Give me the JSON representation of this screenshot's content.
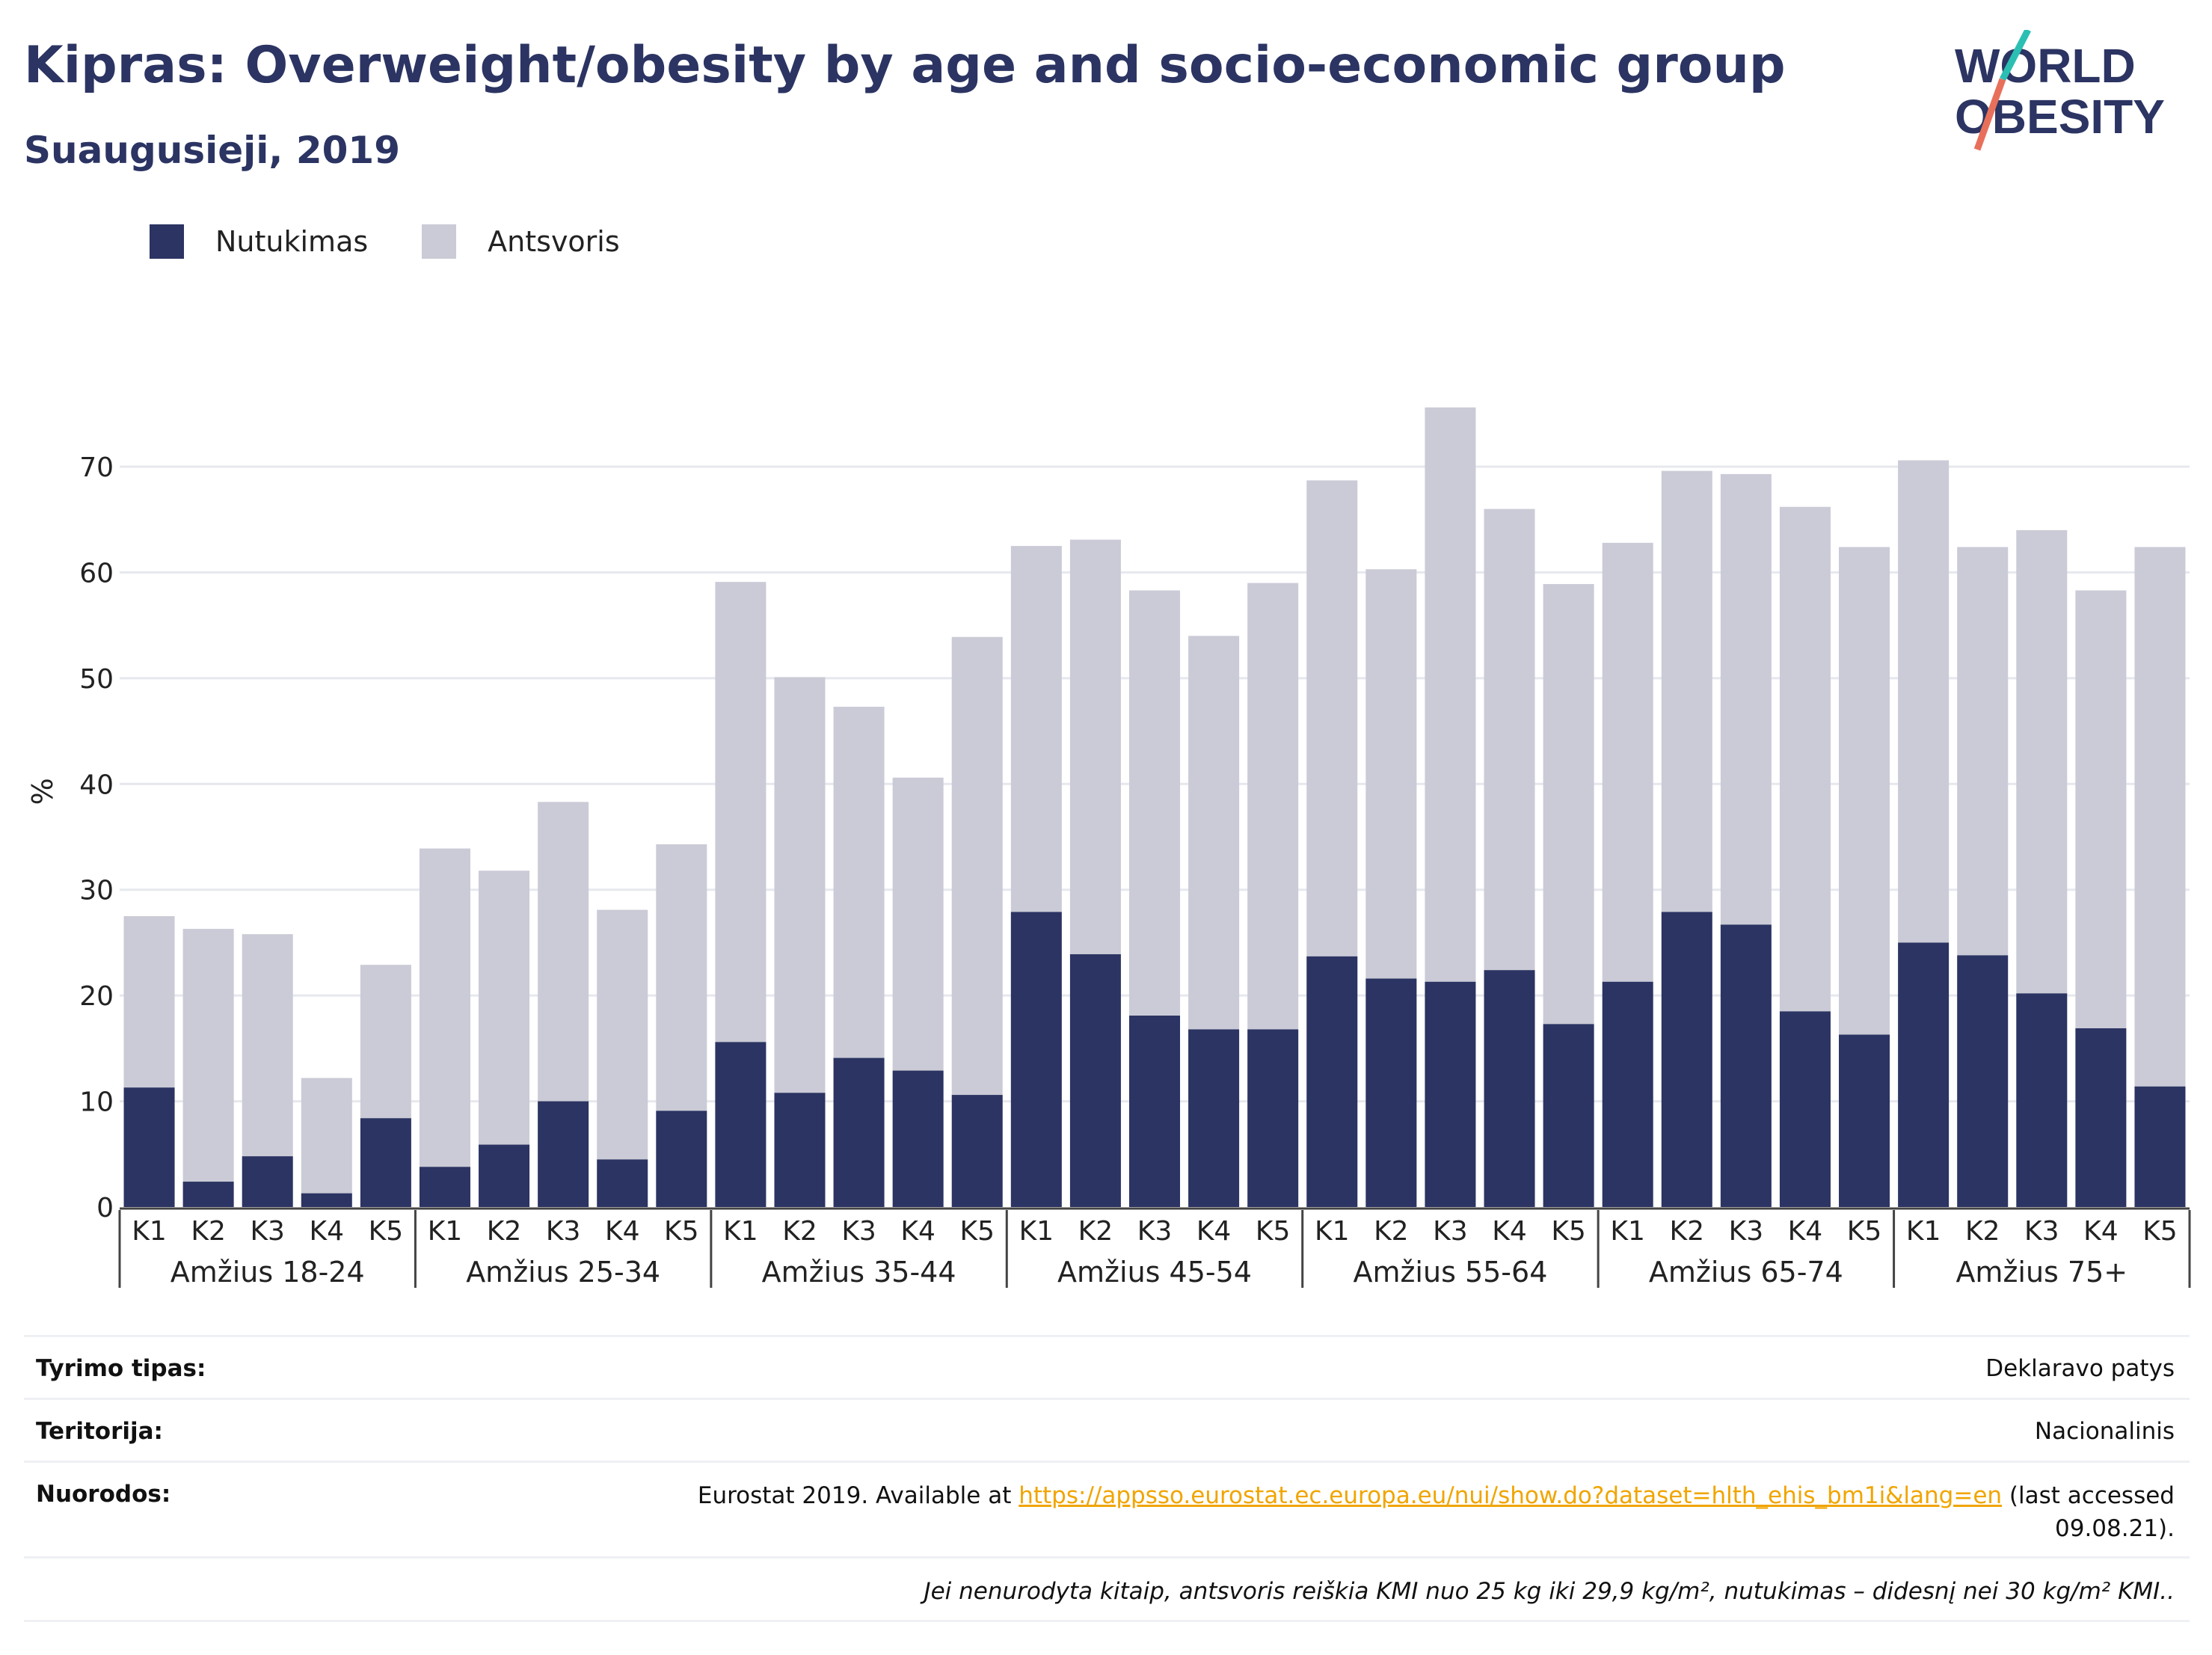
{
  "title": "Kipras: Overweight/obesity by age and socio-economic group",
  "subtitle": "Suaugusieji, 2019",
  "logo": {
    "line1": "WORLD",
    "line2": "OBESITY",
    "name": "world-obesity-logo"
  },
  "legend": [
    {
      "label": "Nutukimas",
      "color": "#2b3462"
    },
    {
      "label": "Antsvoris",
      "color": "#cacbd6"
    }
  ],
  "chart_data": {
    "type": "bar",
    "stacked": true,
    "ylabel": "%",
    "ylim": [
      0,
      80
    ],
    "yticks": [
      0,
      10,
      20,
      30,
      40,
      50,
      60,
      70
    ],
    "grid": true,
    "legend_position": "top-left",
    "quintiles": [
      "K1",
      "K2",
      "K3",
      "K4",
      "K5"
    ],
    "groups": [
      "Amžius 18-24",
      "Amžius 25-34",
      "Amžius 35-44",
      "Amžius 45-54",
      "Amžius 55-64",
      "Amžius 65-74",
      "Amžius 75+"
    ],
    "series": [
      {
        "name": "Nutukimas",
        "color": "#2b3462",
        "values": [
          11.3,
          2.4,
          4.8,
          1.3,
          8.4,
          3.8,
          5.9,
          10.0,
          4.5,
          9.1,
          15.6,
          10.8,
          14.1,
          12.9,
          10.6,
          27.9,
          23.9,
          18.1,
          16.8,
          16.8,
          23.7,
          21.6,
          21.3,
          22.4,
          17.3,
          21.3,
          27.9,
          26.7,
          18.5,
          16.3,
          25.0,
          23.8,
          20.2,
          16.9,
          11.4
        ]
      },
      {
        "name": "Antsvoris",
        "color": "#cacbd6",
        "values": [
          16.2,
          23.9,
          21.0,
          10.9,
          14.5,
          30.1,
          25.9,
          28.3,
          23.6,
          25.2,
          43.5,
          39.3,
          33.2,
          27.7,
          43.3,
          34.6,
          39.2,
          40.2,
          37.2,
          42.2,
          45.0,
          38.7,
          54.3,
          43.6,
          41.6,
          41.5,
          41.7,
          42.6,
          47.7,
          46.1,
          45.6,
          38.6,
          43.8,
          41.4,
          51.0
        ]
      }
    ]
  },
  "info": {
    "rows": [
      {
        "label": "Tyrimo tipas:",
        "value": "Deklaravo patys"
      },
      {
        "label": "Teritorija:",
        "value": "Nacionalinis"
      }
    ],
    "source": {
      "label": "Nuorodos:",
      "prefix": "Eurostat 2019. Available at ",
      "url": "https://appsso.eurostat.ec.europa.eu/nui/show.do?dataset=hlth_ehis_bm1i&lang=en",
      "suffix": " (last accessed",
      "line2": "09.08.21)."
    },
    "note": "Jei nenurodyta kitaip, antsvoris reiškia KMI nuo 25 kg iki 29,9 kg/m², nutukimas – didesnį nei 30 kg/m² KMI.."
  }
}
